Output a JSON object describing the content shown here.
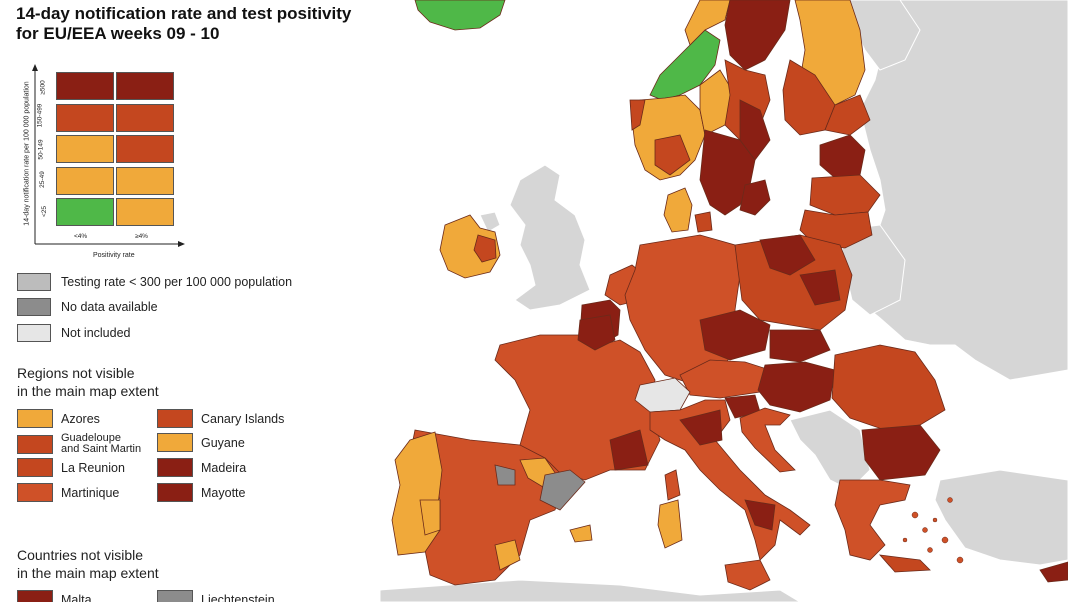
{
  "title": {
    "line1": "14-day notification rate and test positivity",
    "line2": "for EU/EEA weeks 09 - 10"
  },
  "colors": {
    "sea": "#ffffff",
    "non_eu_land": "#d6d6d6",
    "green": "#4fb848",
    "yellow": "#f0a93a",
    "orange": "#cf5128",
    "red_orange": "#c4471f",
    "dark_red": "#8a1f14",
    "testing_low": "#bcbcbc",
    "no_data": "#8c8c8c",
    "not_included": "#e6e6e6",
    "border": "#6b2a1a"
  },
  "matrix": {
    "y_axis_label": "14-day notification rate per 100 000 population",
    "x_axis_label": "Positivity rate",
    "x_ticks": [
      "<4%",
      "≥4%"
    ],
    "y_ticks": [
      "≥500",
      "150-499",
      "50-149",
      "25-49",
      "<25"
    ],
    "cells": [
      [
        "#8a1f14",
        "#8a1f14"
      ],
      [
        "#c4471f",
        "#c4471f"
      ],
      [
        "#f0a93a",
        "#c4471f"
      ],
      [
        "#f0a93a",
        "#f0a93a"
      ],
      [
        "#4fb848",
        "#f0a93a"
      ]
    ]
  },
  "legend_items": [
    {
      "label": "Testing rate < 300 per 100 000 population",
      "color": "#bcbcbc"
    },
    {
      "label": "No data available",
      "color": "#8c8c8c"
    },
    {
      "label": "Not included",
      "color": "#e6e6e6"
    }
  ],
  "regions_section": {
    "title_line1": "Regions not visible",
    "title_line2": "in the main map extent",
    "left": [
      {
        "label": "Azores",
        "color": "#f0a93a"
      },
      {
        "label_line1": "Guadeloupe",
        "label_line2": "and Saint Martin",
        "color": "#c4471f"
      },
      {
        "label": "La Reunion",
        "color": "#c4471f"
      },
      {
        "label": "Martinique",
        "color": "#cf5128"
      }
    ],
    "right": [
      {
        "label": "Canary Islands",
        "color": "#c4471f"
      },
      {
        "label": "Guyane",
        "color": "#f0a93a"
      },
      {
        "label": "Madeira",
        "color": "#8a1f14"
      },
      {
        "label": "Mayotte",
        "color": "#8a1f14"
      }
    ]
  },
  "countries_section": {
    "title_line1": "Countries not visible",
    "title_line2": "in the main map extent",
    "items": [
      {
        "label": "Malta",
        "color": "#8a1f14"
      },
      {
        "label": "Liechtenstein",
        "color": "#8c8c8c"
      }
    ]
  },
  "map_regions": [
    {
      "name": "iceland",
      "status": "green"
    },
    {
      "name": "norway",
      "status": "mixed"
    },
    {
      "name": "sweden",
      "status": "dark_red"
    },
    {
      "name": "finland",
      "status": "mixed"
    },
    {
      "name": "estonia",
      "status": "dark_red"
    },
    {
      "name": "latvia",
      "status": "red_orange"
    },
    {
      "name": "lithuania",
      "status": "red_orange"
    },
    {
      "name": "ireland",
      "status": "yellow"
    },
    {
      "name": "denmark",
      "status": "yellow"
    },
    {
      "name": "poland",
      "status": "dark_red"
    },
    {
      "name": "germany",
      "status": "orange"
    },
    {
      "name": "netherlands",
      "status": "orange"
    },
    {
      "name": "belgium",
      "status": "dark_red"
    },
    {
      "name": "france",
      "status": "orange"
    },
    {
      "name": "spain",
      "status": "orange"
    },
    {
      "name": "portugal",
      "status": "yellow"
    },
    {
      "name": "italy",
      "status": "orange"
    },
    {
      "name": "austria",
      "status": "orange"
    },
    {
      "name": "czechia",
      "status": "dark_red"
    },
    {
      "name": "slovakia",
      "status": "dark_red"
    },
    {
      "name": "hungary",
      "status": "dark_red"
    },
    {
      "name": "slovenia",
      "status": "dark_red"
    },
    {
      "name": "croatia",
      "status": "orange"
    },
    {
      "name": "romania",
      "status": "red_orange"
    },
    {
      "name": "bulgaria",
      "status": "dark_red"
    },
    {
      "name": "greece",
      "status": "orange"
    },
    {
      "name": "cyprus",
      "status": "dark_red"
    },
    {
      "name": "switzerland",
      "status": "not_included"
    },
    {
      "name": "catalonia",
      "status": "no_data"
    }
  ]
}
